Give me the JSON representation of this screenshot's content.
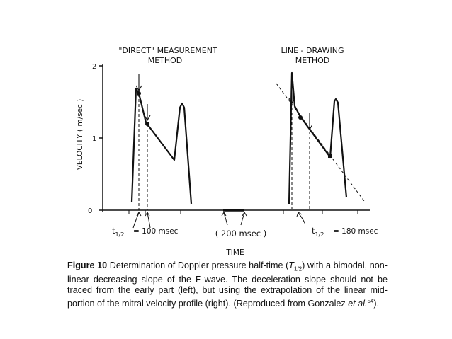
{
  "figure": {
    "panel_left_title_line1": "\"DIRECT\" MEASUREMENT",
    "panel_left_title_line2": "METHOD",
    "panel_right_title_line1": "LINE - DRAWING",
    "panel_right_title_line2": "METHOD",
    "y_axis_label": "VELOCITY  ( m/sec )",
    "x_axis_label": "TIME",
    "y_ticks": [
      "0",
      "1",
      "2"
    ],
    "left_annotation": "= 100 msec",
    "right_annotation": "= 180 msec",
    "t_half_main": "t",
    "t_half_sub": "1/2",
    "scale_bar_label": "( 200  msec )"
  },
  "caption": {
    "label": "Figure 10",
    "text1": " Determination of Doppler pressure half-time (",
    "t_symbol": "T",
    "t_sub": "1/2",
    "text2": ") with a bimodal, non-linear decreasing slope of the E-wave. The deceleration slope should not be traced from the early part (left), but using the extrapolation of the linear mid-portion of the mitral velocity profile (right). (Reproduced from Gonzalez ",
    "et_al": "et al.",
    "ref_sup": "54",
    "text3": ")."
  }
}
